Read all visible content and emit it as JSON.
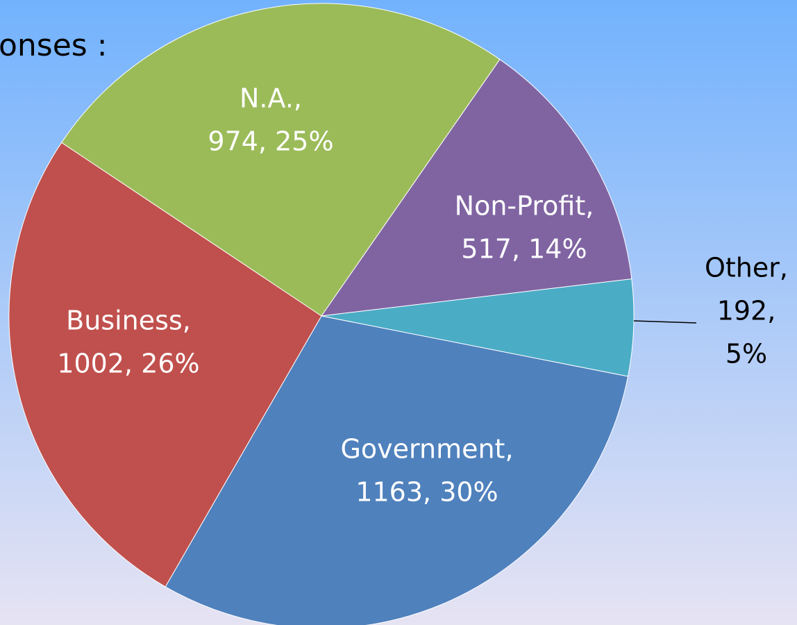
{
  "chart_data": {
    "type": "pie",
    "title": "onses :",
    "categories": [
      "N.A.,",
      "Non-Profit,",
      "Other,",
      "Government,",
      "Business,"
    ],
    "values": [
      974,
      517,
      192,
      1163,
      1002
    ],
    "value_labels": [
      [
        "974, 25%"
      ],
      [
        "517, 14%"
      ],
      [
        "192,",
        "5%"
      ],
      [
        "1163, 30%"
      ],
      [
        "1002, 26%"
      ]
    ],
    "colors": [
      "#9bbb59",
      "#8064a2",
      "#4bacc6",
      "#4f81bd",
      "#c0504d"
    ]
  }
}
